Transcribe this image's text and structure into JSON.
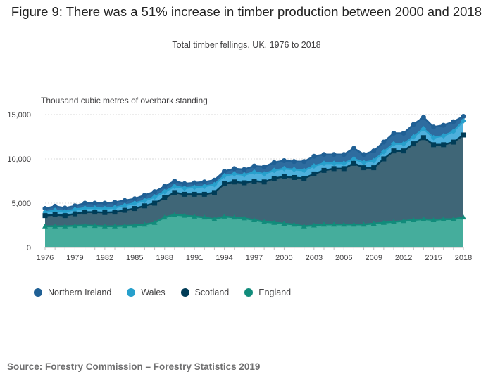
{
  "title": "Figure 9: There was a 51% increase in timber production between 2000 and 2018",
  "subtitle": "Total timber fellings, UK, 1976 to 2018",
  "source": "Source: Forestry Commission – Forestry Statistics 2019",
  "chart_data": {
    "type": "area",
    "stacked": true,
    "ylabel": "Thousand cubic metres of overbark standing",
    "xlabel": "",
    "ylim": [
      0,
      15000
    ],
    "yticks": [
      "0",
      "5,000",
      "10,000",
      "15,000"
    ],
    "ytick_values": [
      0,
      5000,
      10000,
      15000
    ],
    "xticks": [
      "1976",
      "1979",
      "1982",
      "1985",
      "1988",
      "1991",
      "1994",
      "1997",
      "2000",
      "2003",
      "2006",
      "2009",
      "2012",
      "2015",
      "2018"
    ],
    "grid": true,
    "legend_position": "bottom-left",
    "x": [
      1976,
      1977,
      1978,
      1979,
      1980,
      1981,
      1982,
      1983,
      1984,
      1985,
      1986,
      1987,
      1988,
      1989,
      1990,
      1991,
      1992,
      1993,
      1994,
      1995,
      1996,
      1997,
      1998,
      1999,
      2000,
      2001,
      2002,
      2003,
      2004,
      2005,
      2006,
      2007,
      2008,
      2009,
      2010,
      2011,
      2012,
      2013,
      2014,
      2015,
      2016,
      2017,
      2018
    ],
    "totals": {
      "England": [
        2400,
        2400,
        2400,
        2450,
        2500,
        2450,
        2400,
        2400,
        2450,
        2500,
        2600,
        2800,
        3400,
        3700,
        3600,
        3500,
        3400,
        3200,
        3500,
        3400,
        3300,
        3100,
        2900,
        2800,
        2700,
        2600,
        2400,
        2500,
        2600,
        2600,
        2600,
        2600,
        2600,
        2700,
        2800,
        2900,
        3000,
        3100,
        3200,
        3100,
        3200,
        3200,
        3400
      ],
      "Scotland": [
        3600,
        3700,
        3600,
        3800,
        4000,
        4000,
        3950,
        4000,
        4200,
        4400,
        4700,
        5000,
        5600,
        6200,
        6000,
        6000,
        6000,
        6200,
        7200,
        7400,
        7300,
        7500,
        7400,
        7800,
        8000,
        7900,
        7800,
        8300,
        8700,
        8900,
        8900,
        9500,
        9000,
        9000,
        10000,
        10900,
        10900,
        11700,
        12400,
        11600,
        11600,
        11900,
        12700
      ],
      "Wales": [
        4000,
        4200,
        4050,
        4300,
        4450,
        4450,
        4400,
        4500,
        4750,
        5000,
        5300,
        5700,
        6300,
        6900,
        6700,
        6800,
        6900,
        7100,
        8100,
        8300,
        8200,
        8500,
        8300,
        8700,
        8900,
        8800,
        8700,
        9200,
        9500,
        9500,
        9500,
        10000,
        9600,
        9800,
        10800,
        11700,
        11700,
        12500,
        13400,
        12400,
        12600,
        13100,
        14300
      ],
      "Northern Ireland": [
        4400,
        4650,
        4450,
        4700,
        5000,
        5000,
        5000,
        5100,
        5300,
        5500,
        5900,
        6300,
        6900,
        7500,
        7200,
        7300,
        7400,
        7600,
        8600,
        8900,
        8800,
        9200,
        9100,
        9600,
        9800,
        9700,
        9700,
        10300,
        10500,
        10500,
        10500,
        11200,
        10500,
        10900,
        11900,
        12900,
        12900,
        13900,
        14700,
        13600,
        13800,
        14200,
        14800
      ]
    },
    "series": [
      {
        "name": "Northern Ireland",
        "color": "#206095",
        "marker": "circle",
        "top_values_key": "Northern Ireland"
      },
      {
        "name": "Wales",
        "color": "#27a0cc",
        "marker": "diamond",
        "top_values_key": "Wales"
      },
      {
        "name": "Scotland",
        "color": "#003c57",
        "marker": "square",
        "top_values_key": "Scotland"
      },
      {
        "name": "England",
        "color": "#118c7b",
        "marker": "triangle",
        "top_values_key": "England"
      }
    ],
    "fill_colors": {
      "Northern Ireland": "#2e6c9f",
      "Wales": "#4eb0dc",
      "Scotland": "#3f6677",
      "England": "#45ad9c"
    },
    "legend": [
      "Northern Ireland",
      "Wales",
      "Scotland",
      "England"
    ]
  }
}
